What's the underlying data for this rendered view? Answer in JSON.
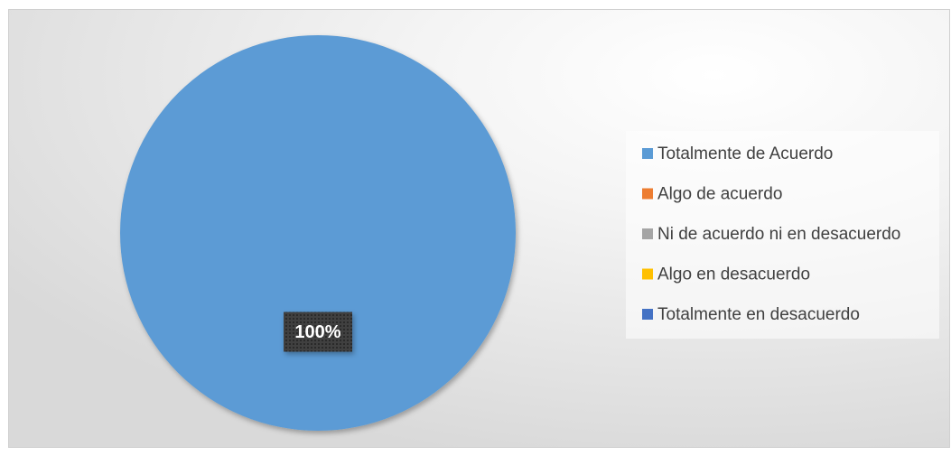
{
  "chart_data": {
    "type": "pie",
    "categories": [
      "Totalmente de Acuerdo",
      "Algo de acuerdo",
      "Ni de acuerdo ni en desacuerdo",
      "Algo en desacuerdo",
      "Totalmente en desacuerdo"
    ],
    "values": [
      100,
      0,
      0,
      0,
      0
    ],
    "value_labels": [
      "100%",
      null,
      null,
      null,
      null
    ],
    "colors": [
      "#5b9bd5",
      "#ed7d31",
      "#a5a5a5",
      "#ffc000",
      "#4472c4"
    ],
    "legend": "right"
  }
}
